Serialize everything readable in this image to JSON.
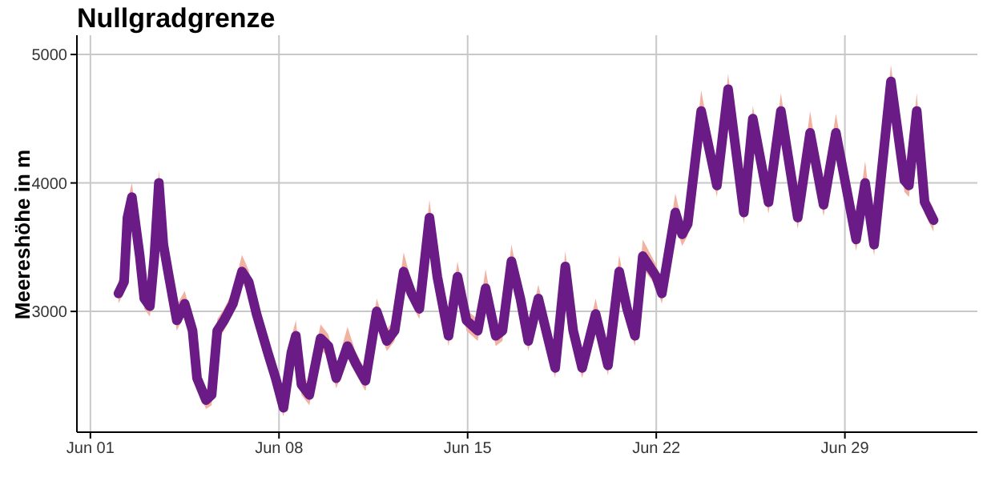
{
  "chart_data": {
    "type": "line",
    "title": "Nullgradgrenze",
    "ylabel": "Meereshöhe in m",
    "x": [
      "--06-02T01:00",
      "--06-02T06:00",
      "--06-02T09:00",
      "--06-02T13:00",
      "--06-02T20:00",
      "--06-03T00:00",
      "--06-03T05:00",
      "--06-03T09:00",
      "--06-03T13:00",
      "--06-03T17:00",
      "--06-03T22:00",
      "--06-04T05:00",
      "--06-04T12:00",
      "--06-04T19:00",
      "--06-04T23:00",
      "--06-05T07:00",
      "--06-05T12:00",
      "--06-05T17:00",
      "--06-05T23:00",
      "--06-06T07:00",
      "--06-06T15:00",
      "--06-06T21:00",
      "--06-07T04:00",
      "--06-07T14:00",
      "--06-07T21:00",
      "--06-08T04:00",
      "--06-08T11:00",
      "--06-08T15:00",
      "--06-08T20:00",
      "--06-09T03:00",
      "--06-09T13:00",
      "--06-09T20:00",
      "--06-10T03:00",
      "--06-10T13:00",
      "--06-10T20:00",
      "--06-11T05:00",
      "--06-11T15:00",
      "--06-12T00:00",
      "--06-12T07:00",
      "--06-12T15:00",
      "--06-12T22:00",
      "--06-13T05:00",
      "--06-13T14:00",
      "--06-13T21:00",
      "--06-14T07:00",
      "--06-14T15:00",
      "--06-14T23:00",
      "--06-15T09:00",
      "--06-15T16:00",
      "--06-16T01:00",
      "--06-16T07:00",
      "--06-16T15:00",
      "--06-16T23:00",
      "--06-17T06:00",
      "--06-17T15:00",
      "--06-17T23:00",
      "--06-18T06:00",
      "--06-18T15:00",
      "--06-18T22:00",
      "--06-19T06:00",
      "--06-19T18:00",
      "--06-20T05:00",
      "--06-20T15:00",
      "--06-20T22:00",
      "--06-21T05:00",
      "--06-21T12:00",
      "--06-22T00:00",
      "--06-22T05:00",
      "--06-22T17:00",
      "--06-22T23:00",
      "--06-23T04:00",
      "--06-23T16:00",
      "--06-24T06:00",
      "--06-24T16:00",
      "--06-25T06:00",
      "--06-25T14:00",
      "--06-26T04:00",
      "--06-26T15:00",
      "--06-27T06:00",
      "--06-27T17:00",
      "--06-28T05:00",
      "--06-28T16:00",
      "--06-29T10:00",
      "--06-29T18:00",
      "--06-30T02:00",
      "--06-30T17:00",
      "--07-01T05:00",
      "--07-01T09:00",
      "--07-01T16:00",
      "--07-01T23:00",
      "--07-02T07:00"
    ],
    "series": [
      {
        "color": "#6a1b85",
        "values": [
          3140,
          3230,
          3730,
          3890,
          3430,
          3100,
          3040,
          3430,
          4000,
          3520,
          3270,
          2930,
          3060,
          2850,
          2480,
          2310,
          2350,
          2850,
          2930,
          3060,
          3310,
          3230,
          2980,
          2680,
          2480,
          2250,
          2680,
          2810,
          2430,
          2350,
          2790,
          2730,
          2480,
          2730,
          2600,
          2460,
          3000,
          2770,
          2850,
          3310,
          3140,
          3020,
          3730,
          3270,
          2810,
          3270,
          2930,
          2850,
          3180,
          2810,
          2850,
          3390,
          3100,
          2770,
          3100,
          2810,
          2560,
          3350,
          2850,
          2560,
          2980,
          2580,
          3310,
          3020,
          2810,
          3430,
          3270,
          3140,
          3770,
          3600,
          3680,
          4560,
          3980,
          4730,
          3770,
          4500,
          3850,
          4560,
          3730,
          4390,
          3830,
          4390,
          3560,
          4000,
          3520,
          4790,
          4020,
          3980,
          4560,
          3850,
          3710
        ],
        "lower": [
          3060,
          3150,
          3640,
          3800,
          3350,
          3020,
          2960,
          3350,
          3900,
          3430,
          3190,
          2850,
          2980,
          2770,
          2400,
          2240,
          2270,
          2760,
          2850,
          2980,
          3220,
          3150,
          2900,
          2600,
          2400,
          2180,
          2600,
          2730,
          2350,
          2270,
          2700,
          2650,
          2400,
          2650,
          2520,
          2380,
          2920,
          2690,
          2770,
          3220,
          3060,
          2940,
          3640,
          3190,
          2730,
          3190,
          2850,
          2770,
          3100,
          2730,
          2770,
          3300,
          3020,
          2690,
          3020,
          2730,
          2480,
          3260,
          2770,
          2480,
          2900,
          2500,
          3220,
          2940,
          2730,
          3340,
          3190,
          3060,
          3680,
          3510,
          3590,
          4460,
          3890,
          4640,
          3680,
          4410,
          3760,
          4470,
          3640,
          4300,
          3740,
          4300,
          3470,
          3910,
          3430,
          4700,
          3930,
          3890,
          4470,
          3760,
          3620
        ],
        "upper": [
          3240,
          3320,
          3860,
          4000,
          3520,
          3180,
          3120,
          3550,
          4100,
          3610,
          3350,
          3050,
          3160,
          2940,
          2570,
          2390,
          2430,
          2940,
          3020,
          3160,
          3440,
          3320,
          3060,
          2780,
          2570,
          2330,
          2800,
          2930,
          2520,
          2430,
          2900,
          2820,
          2570,
          2880,
          2690,
          2540,
          3100,
          2860,
          2940,
          3460,
          3230,
          3100,
          3870,
          3360,
          2890,
          3390,
          3010,
          2940,
          3330,
          2890,
          2940,
          3520,
          3180,
          2850,
          3210,
          2890,
          2640,
          3470,
          2940,
          2640,
          3100,
          2660,
          3440,
          3100,
          2890,
          3560,
          3360,
          3230,
          3920,
          3690,
          3780,
          4720,
          4070,
          4850,
          3860,
          4600,
          3940,
          4700,
          3820,
          4560,
          3920,
          4540,
          3650,
          4170,
          3610,
          4920,
          4110,
          4070,
          4700,
          3940,
          3800
        ]
      }
    ],
    "xlim": [
      "--05-31T12:00",
      "--07-03T22:00"
    ],
    "xticks": [
      {
        "value": "--06-01",
        "label": "Jun 01"
      },
      {
        "value": "--06-08",
        "label": "Jun 08"
      },
      {
        "value": "--06-15",
        "label": "Jun 15"
      },
      {
        "value": "--06-22",
        "label": "Jun 22"
      },
      {
        "value": "--06-29",
        "label": "Jun 29"
      }
    ],
    "ylim": [
      2060,
      5150
    ],
    "yticks": [
      3000,
      4000,
      5000
    ],
    "grid": true,
    "marker": "none",
    "line_style": "solid"
  }
}
